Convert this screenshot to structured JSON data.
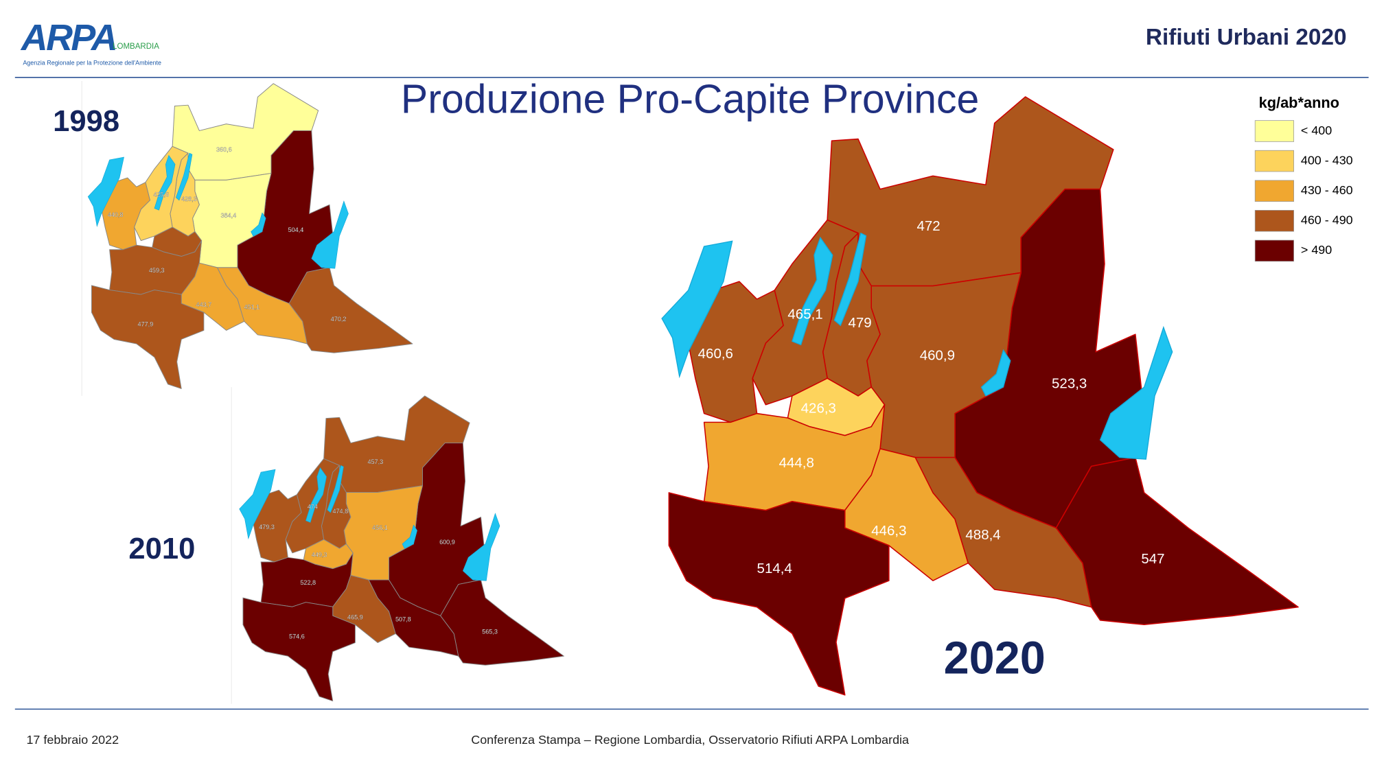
{
  "header": {
    "logo": "ARPA",
    "logo_region": "LOMBARDIA",
    "logo_subtitle": "Agenzia Regionale per la Protezione dell'Ambiente",
    "report": "Rifiuti Urbani 2020"
  },
  "title": "Produzione Pro-Capite Province",
  "legend": {
    "title": "kg/ab*anno",
    "items": [
      {
        "label": "< 400",
        "color": "#ffff99"
      },
      {
        "label": "400 - 430",
        "color": "#fdd35c"
      },
      {
        "label": "430 - 460",
        "color": "#f0a730"
      },
      {
        "label": "460 - 490",
        "color": "#ad561c"
      },
      {
        "label": "> 490",
        "color": "#6b0000"
      }
    ]
  },
  "maps": [
    {
      "year": "1998",
      "regions": [
        {
          "label": "360,6",
          "color": "#ffff99"
        },
        {
          "label": "504,4",
          "color": "#6b0000"
        },
        {
          "label": "384,4",
          "color": "#ffff99"
        },
        {
          "label": "428,3",
          "color": "#fdd35c"
        },
        {
          "label": "425,6",
          "color": "#fdd35c"
        },
        {
          "label": "440,8",
          "color": "#f0a730"
        },
        {
          "label": null,
          "color": "#ad561c"
        },
        {
          "label": "459,3",
          "color": "#ad561c"
        },
        {
          "label": "443,7",
          "color": "#f0a730"
        },
        {
          "label": "451,1",
          "color": "#f0a730"
        },
        {
          "label": "470,2",
          "color": "#ad561c"
        },
        {
          "label": "477,9",
          "color": "#ad561c"
        }
      ]
    },
    {
      "year": "2010",
      "regions": [
        {
          "label": "457,3",
          "color": "#ad561c"
        },
        {
          "label": "600,9",
          "color": "#6b0000"
        },
        {
          "label": "456,1",
          "color": "#f0a730"
        },
        {
          "label": "474,8",
          "color": "#ad561c"
        },
        {
          "label": "474",
          "color": "#ad561c"
        },
        {
          "label": "479,3",
          "color": "#ad561c"
        },
        {
          "label": "449,3",
          "color": "#f0a730"
        },
        {
          "label": "522,8",
          "color": "#6b0000"
        },
        {
          "label": "465,9",
          "color": "#ad561c"
        },
        {
          "label": "507,8",
          "color": "#6b0000"
        },
        {
          "label": "565,3",
          "color": "#6b0000"
        },
        {
          "label": "574,6",
          "color": "#6b0000"
        }
      ]
    },
    {
      "year": "2020",
      "regions": [
        {
          "label": "472",
          "color": "#ad561c"
        },
        {
          "label": "523,3",
          "color": "#6b0000"
        },
        {
          "label": "460,9",
          "color": "#ad561c"
        },
        {
          "label": "479",
          "color": "#ad561c"
        },
        {
          "label": "465,1",
          "color": "#ad561c"
        },
        {
          "label": "460,6",
          "color": "#ad561c"
        },
        {
          "label": "426,3",
          "color": "#fdd35c"
        },
        {
          "label": "444,8",
          "color": "#f0a730"
        },
        {
          "label": "446,3",
          "color": "#f0a730"
        },
        {
          "label": "488,4",
          "color": "#ad561c"
        },
        {
          "label": "547",
          "color": "#6b0000"
        },
        {
          "label": "514,4",
          "color": "#6b0000"
        }
      ]
    }
  ],
  "footer": {
    "date": "17 febbraio 2022",
    "event": "Conferenza Stampa – Regione Lombardia, Osservatorio Rifiuti  ARPA Lombardia"
  }
}
